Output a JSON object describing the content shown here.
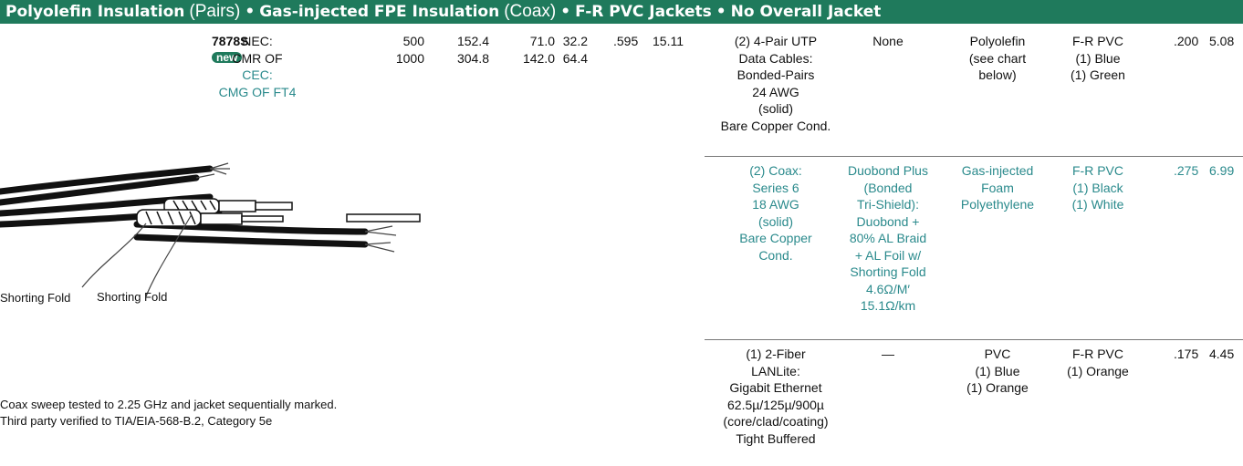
{
  "header": {
    "segments": [
      "Polyolefin Insulation",
      "(Pairs)",
      "•",
      "Gas-injected FPE Insulation",
      "(Coax)",
      "•",
      "F-R PVC Jackets",
      "•",
      "No Overall Jacket"
    ]
  },
  "product": {
    "part_number": "7878S",
    "badge": "new",
    "nec_label": "NEC:",
    "nec_rating": "CMR OF",
    "cec_label": "CEC:",
    "cec_rating": "CMG OF FT4",
    "lengths_ft": [
      "500",
      "1000"
    ],
    "lengths_m": [
      "152.4",
      "304.8"
    ],
    "weights_lbs": [
      "71.0",
      "142.0"
    ],
    "weights_kg": [
      "32.2",
      "64.4"
    ],
    "od_in": ".595",
    "od_mm": "15.11"
  },
  "components": [
    {
      "description": [
        "(2) 4-Pair UTP",
        "Data Cables:",
        "Bonded-Pairs",
        "24 AWG",
        "(solid)",
        "Bare Copper Cond."
      ],
      "shield": [
        "None"
      ],
      "insulation": [
        "Polyolefin",
        "(see chart",
        "below)"
      ],
      "jacket": [
        "F-R PVC",
        "(1) Blue",
        "(1) Green"
      ],
      "od_in": ".200",
      "od_mm": "5.08"
    },
    {
      "description": [
        "(2) Coax:",
        "Series 6",
        "18 AWG",
        "(solid)",
        "Bare Copper",
        "Cond."
      ],
      "shield": [
        "Duobond Plus",
        "(Bonded",
        "Tri-Shield):",
        "Duobond +",
        "80% AL Braid",
        "+ AL Foil w/",
        "Shorting Fold",
        "4.6Ω/M′",
        "15.1Ω/km"
      ],
      "insulation": [
        "Gas-injected",
        "Foam",
        "Polyethylene"
      ],
      "jacket": [
        "F-R PVC",
        "(1) Black",
        "(1) White"
      ],
      "od_in": ".275",
      "od_mm": "6.99"
    },
    {
      "description": [
        "(1) 2-Fiber",
        "LANLite:",
        "Gigabit Ethernet",
        "62.5µ/125µ/900µ",
        "(core/clad/coating)",
        "Tight Buffered"
      ],
      "shield": [
        "—"
      ],
      "insulation": [
        "PVC",
        "(1) Blue",
        "(1) Orange"
      ],
      "jacket": [
        "F-R PVC",
        "(1) Orange"
      ],
      "od_in": ".175",
      "od_mm": "4.45"
    }
  ],
  "figure": {
    "callouts": [
      "Shorting Fold",
      "Shorting Fold"
    ]
  },
  "notes": [
    "Coax sweep tested to 2.25 GHz and jacket sequentially marked.",
    "Third party verified to TIA/EIA-568-B.2, Category 5e"
  ]
}
